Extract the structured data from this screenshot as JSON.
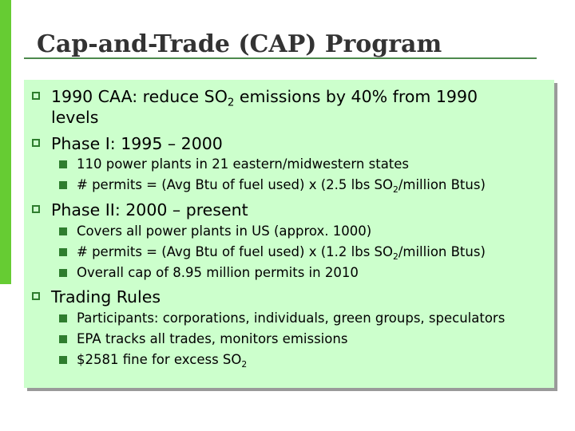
{
  "slide": {
    "title": "Cap-and-Trade (CAP) Program",
    "bullets": {
      "b1": {
        "pre": "1990 CAA: reduce SO",
        "sub": "2",
        "post": " emissions by 40% from 1990",
        "cont": "levels"
      },
      "b2": {
        "text": "Phase I: 1995 – 2000"
      },
      "b2_1": {
        "text": "110 power plants in 21 eastern/midwestern states"
      },
      "b2_2": {
        "pre": "# permits = (Avg Btu of fuel used) x (2.5 lbs SO",
        "sub": "2",
        "post": "/million Btus)"
      },
      "b3": {
        "text": "Phase II: 2000 – present"
      },
      "b3_1": {
        "text": "Covers all power plants in US (approx. 1000)"
      },
      "b3_2": {
        "pre": "# permits = (Avg Btu of fuel used) x (1.2 lbs SO",
        "sub": "2",
        "post": "/million Btus)"
      },
      "b3_3": {
        "text": "Overall cap of 8.95 million permits in 2010"
      },
      "b4": {
        "text": "Trading Rules"
      },
      "b4_1": {
        "text": "Participants: corporations, individuals, green groups, speculators"
      },
      "b4_2": {
        "text": "EPA tracks all trades, monitors emissions"
      },
      "b4_3": {
        "pre": "$2581 fine for excess SO",
        "sub": "2"
      }
    }
  },
  "colors": {
    "accent_bar": "#66cc33",
    "content_bg": "#ccffcc",
    "bullet": "#2e7d2e",
    "title": "#333333"
  },
  "icons": {
    "level1": "hollow-square-bullet-icon",
    "level2": "filled-square-bullet-icon"
  }
}
